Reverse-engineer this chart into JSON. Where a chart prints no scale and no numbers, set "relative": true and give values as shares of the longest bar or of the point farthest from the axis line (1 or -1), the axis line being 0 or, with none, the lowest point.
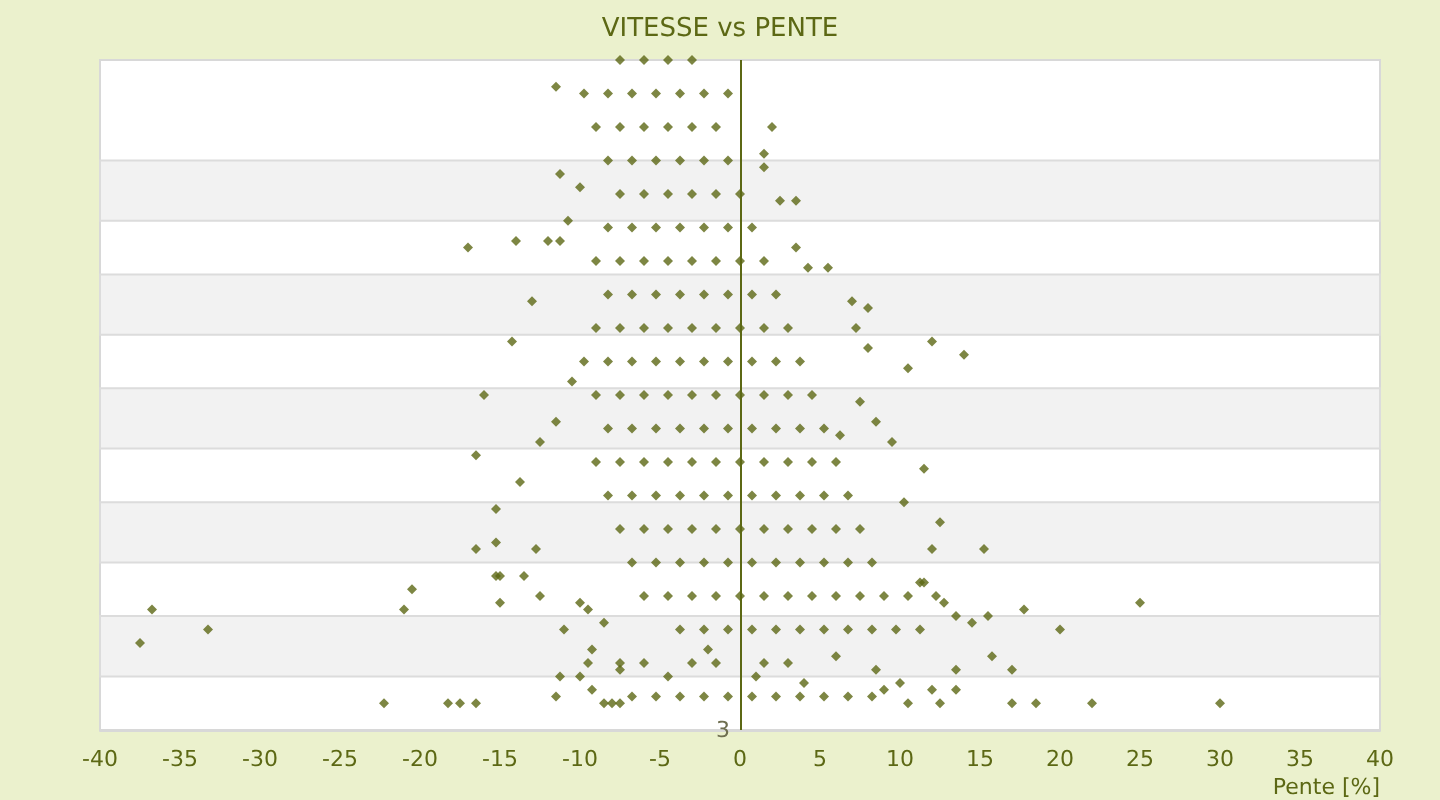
{
  "chart_data": {
    "type": "scatter",
    "title": "VITESSE vs PENTE",
    "xlabel": "Pente [%]",
    "relative": true,
    "tick_labels": "x",
    "marker": "diamond",
    "color": "#5c6814",
    "xlim": [
      -40,
      40
    ],
    "xticks": [
      -40,
      -35,
      -30,
      -25,
      -20,
      -15,
      -10,
      -5,
      0,
      5,
      10,
      15,
      20,
      25,
      30,
      35,
      40
    ],
    "annotations": [
      "3"
    ],
    "ref_lines": [
      {
        "axis": "x",
        "value": 0,
        "color": "#5c6814"
      }
    ],
    "bands": [
      {
        "axis": "y",
        "from": 0.08,
        "to": 0.17,
        "color": "#f2f2f2"
      },
      {
        "axis": "y",
        "from": 0.25,
        "to": 0.34,
        "color": "#f2f2f2"
      },
      {
        "axis": "y",
        "from": 0.42,
        "to": 0.51,
        "color": "#f2f2f2"
      },
      {
        "axis": "y",
        "from": 0.59,
        "to": 0.68,
        "color": "#f2f2f2"
      },
      {
        "axis": "y",
        "from": 0.76,
        "to": 0.85,
        "color": "#f2f2f2"
      }
    ],
    "x": [
      -7.5,
      -6,
      -4.5,
      -3,
      -9.75,
      -8.25,
      -6.75,
      -5.25,
      -3.75,
      -2.25,
      -0.75,
      -9,
      -7.5,
      -6,
      -4.5,
      -3,
      -1.5,
      -8.25,
      -6.75,
      -5.25,
      -3.75,
      -2.25,
      -0.75,
      -7.5,
      -6,
      -4.5,
      -3,
      -1.5,
      0,
      -8.25,
      -6.75,
      -5.25,
      -3.75,
      -2.25,
      -0.75,
      0.75,
      -9,
      -7.5,
      -6,
      -4.5,
      -3,
      -1.5,
      0,
      1.5,
      -8.25,
      -6.75,
      -5.25,
      -3.75,
      -2.25,
      -0.75,
      0.75,
      2.25,
      -9,
      -7.5,
      -6,
      -4.5,
      -3,
      -1.5,
      0,
      1.5,
      3,
      -9.75,
      -8.25,
      -6.75,
      -5.25,
      -3.75,
      -2.25,
      -0.75,
      0.75,
      2.25,
      3.75,
      -9,
      -7.5,
      -6,
      -4.5,
      -3,
      -1.5,
      0,
      1.5,
      3,
      4.5,
      -8.25,
      -6.75,
      -5.25,
      -3.75,
      -2.25,
      -0.75,
      0.75,
      2.25,
      3.75,
      5.25,
      -9,
      -7.5,
      -6,
      -4.5,
      -3,
      -1.5,
      0,
      1.5,
      3,
      4.5,
      6,
      -8.25,
      -6.75,
      -5.25,
      -3.75,
      -2.25,
      -0.75,
      0.75,
      2.25,
      3.75,
      5.25,
      6.75,
      -7.5,
      -6,
      -4.5,
      -3,
      -1.5,
      0,
      1.5,
      3,
      4.5,
      6,
      7.5,
      -6.75,
      -5.25,
      -3.75,
      -2.25,
      -0.75,
      0.75,
      2.25,
      3.75,
      5.25,
      6.75,
      8.25,
      -6,
      -4.5,
      -3,
      -1.5,
      0,
      1.5,
      3,
      4.5,
      6,
      7.5,
      9,
      10.5,
      -3.75,
      -2.25,
      -0.75,
      0.75,
      2.25,
      3.75,
      5.25,
      6.75,
      8.25,
      9.75,
      11.25,
      -6,
      -3,
      -1.5,
      1.5,
      3,
      -6.75,
      -5.25,
      -3.75,
      -2.25,
      -0.75,
      0.75,
      2.25,
      3.75,
      5.25,
      6.75,
      8.25,
      1,
      4,
      6,
      8.5,
      -4.5,
      -2,
      -36.75,
      -37.5,
      -33.25,
      -21,
      -20.5,
      -22.25,
      -18.25,
      -17.5,
      -16.5,
      -15,
      -15.25,
      -12.5,
      -11,
      -11.5,
      -11.25,
      -10,
      -9.5,
      -9.25,
      -9.25,
      -8.5,
      -8,
      -7.5,
      -10,
      -9.5,
      -8.5,
      -7.5,
      -7.5,
      17.75,
      25,
      20,
      15.75,
      17,
      13.5,
      17,
      18.5,
      22,
      30,
      15.5,
      14.5,
      13.5,
      12.5,
      12,
      10.5,
      10,
      9,
      11.25,
      11.5,
      12.25,
      12.75,
      13.5,
      -17,
      -14,
      -13,
      -14.25,
      -16,
      -16.5,
      -13.75,
      -15.25,
      -15.25,
      -16.5,
      14,
      12,
      10.5,
      5.5,
      8,
      7,
      7.25,
      8,
      15.25,
      12.5,
      12,
      9.5,
      11.5,
      10.25,
      4.25,
      3.5,
      2.5,
      1.5,
      3.5,
      7.5,
      8.5,
      6.25,
      -12,
      -11.25,
      -10.75,
      -10,
      -11.25,
      -10.5,
      -11.5,
      -12.5,
      -12.75,
      -13.5,
      -15,
      2,
      -11.5,
      1.5
    ],
    "values": [
      1,
      1,
      1,
      1,
      0.95,
      0.95,
      0.95,
      0.95,
      0.95,
      0.95,
      0.95,
      0.9,
      0.9,
      0.9,
      0.9,
      0.9,
      0.9,
      0.85,
      0.85,
      0.85,
      0.85,
      0.85,
      0.85,
      0.8,
      0.8,
      0.8,
      0.8,
      0.8,
      0.8,
      0.75,
      0.75,
      0.75,
      0.75,
      0.75,
      0.75,
      0.75,
      0.7,
      0.7,
      0.7,
      0.7,
      0.7,
      0.7,
      0.7,
      0.7,
      0.65,
      0.65,
      0.65,
      0.65,
      0.65,
      0.65,
      0.65,
      0.65,
      0.6,
      0.6,
      0.6,
      0.6,
      0.6,
      0.6,
      0.6,
      0.6,
      0.6,
      0.55,
      0.55,
      0.55,
      0.55,
      0.55,
      0.55,
      0.55,
      0.55,
      0.55,
      0.55,
      0.5,
      0.5,
      0.5,
      0.5,
      0.5,
      0.5,
      0.5,
      0.5,
      0.5,
      0.5,
      0.45,
      0.45,
      0.45,
      0.45,
      0.45,
      0.45,
      0.45,
      0.45,
      0.45,
      0.45,
      0.4,
      0.4,
      0.4,
      0.4,
      0.4,
      0.4,
      0.4,
      0.4,
      0.4,
      0.4,
      0.4,
      0.35,
      0.35,
      0.35,
      0.35,
      0.35,
      0.35,
      0.35,
      0.35,
      0.35,
      0.35,
      0.35,
      0.3,
      0.3,
      0.3,
      0.3,
      0.3,
      0.3,
      0.3,
      0.3,
      0.3,
      0.3,
      0.3,
      0.25,
      0.25,
      0.25,
      0.25,
      0.25,
      0.25,
      0.25,
      0.25,
      0.25,
      0.25,
      0.25,
      0.2,
      0.2,
      0.2,
      0.2,
      0.2,
      0.2,
      0.2,
      0.2,
      0.2,
      0.2,
      0.2,
      0.2,
      0.15,
      0.15,
      0.15,
      0.15,
      0.15,
      0.15,
      0.15,
      0.15,
      0.15,
      0.15,
      0.15,
      0.1,
      0.1,
      0.1,
      0.1,
      0.1,
      0.05,
      0.05,
      0.05,
      0.05,
      0.05,
      0.05,
      0.05,
      0.05,
      0.05,
      0.05,
      0.05,
      0.08,
      0.07,
      0.11,
      0.09,
      0.08,
      0.12,
      0.18,
      0.13,
      0.15,
      0.18,
      0.21,
      0.04,
      0.04,
      0.04,
      0.04,
      0.19,
      0.23,
      0.2,
      0.15,
      0.05,
      0.08,
      0.08,
      0.1,
      0.12,
      0.06,
      0.04,
      0.04,
      0.04,
      0.19,
      0.18,
      0.16,
      0.1,
      0.09,
      0.18,
      0.19,
      0.15,
      0.11,
      0.09,
      0.09,
      0.04,
      0.04,
      0.04,
      0.04,
      0.17,
      0.16,
      0.06,
      0.04,
      0.06,
      0.04,
      0.07,
      0.06,
      0.22,
      0.22,
      0.2,
      0.19,
      0.17,
      0.72,
      0.73,
      0.64,
      0.58,
      0.5,
      0.41,
      0.37,
      0.33,
      0.28,
      0.27,
      0.56,
      0.58,
      0.54,
      0.69,
      0.63,
      0.64,
      0.6,
      0.57,
      0.27,
      0.31,
      0.27,
      0.43,
      0.39,
      0.34,
      0.69,
      0.79,
      0.79,
      0.84,
      0.72,
      0.49,
      0.46,
      0.44,
      0.73,
      0.73,
      0.76,
      0.81,
      0.83,
      0.52,
      0.46,
      0.43,
      0.27,
      0.23,
      0.23,
      0.9,
      0.96,
      0.86
    ]
  }
}
